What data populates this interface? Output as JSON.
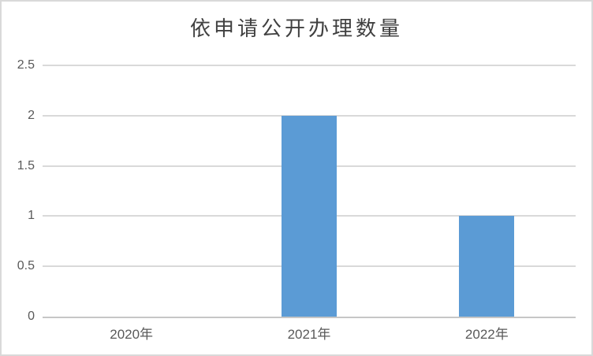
{
  "chart_data": {
    "type": "bar",
    "title": "依申请公开办理数量",
    "categories": [
      "2020年",
      "2021年",
      "2022年"
    ],
    "values": [
      0,
      2,
      1
    ],
    "xlabel": "",
    "ylabel": "",
    "ylim": [
      0,
      2.5
    ],
    "y_ticks": [
      0,
      0.5,
      1,
      1.5,
      2,
      2.5
    ],
    "y_tick_labels": [
      "0",
      "0.5",
      "1",
      "1.5",
      "2",
      "2.5"
    ],
    "grid": "horizontal",
    "legend_position": "none",
    "colors": {
      "bar": "#5B9BD5",
      "gridline": "#D9D9D9",
      "axis_line": "#C6C6C6",
      "tick_label": "#595959",
      "title": "#404040",
      "frame_border": "#D9D9D9",
      "background": "#FFFFFF"
    }
  }
}
